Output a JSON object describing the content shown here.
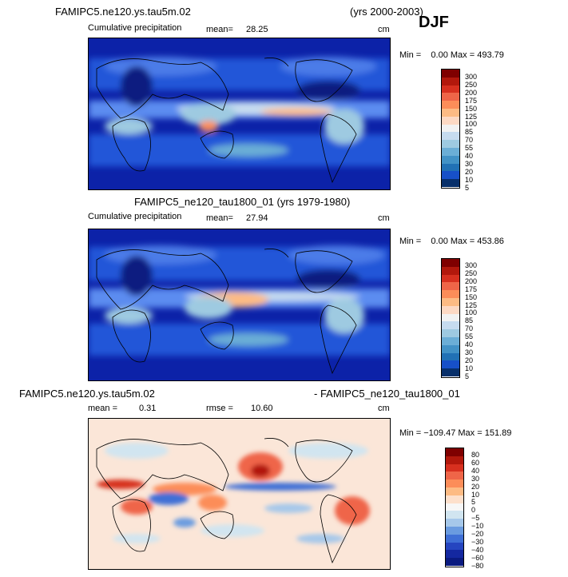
{
  "season_label": "DJF",
  "panel1": {
    "title": "FAMIPC5.ne120.ys.tau5m.02",
    "years": "(yrs 2000-2003)",
    "field": "Cumulative precipitation",
    "mean_label": "mean=",
    "mean_value": "28.25",
    "units": "cm",
    "min_max": "Min =    0.00 Max = 493.79",
    "colorbar_labels": [
      "300",
      "250",
      "200",
      "175",
      "150",
      "125",
      "100",
      "85",
      "70",
      "55",
      "40",
      "30",
      "20",
      "10",
      "5"
    ]
  },
  "panel2": {
    "title": "FAMIPC5_ne120_tau1800_01 (yrs 1979-1980)",
    "field": "Cumulative precipitation",
    "mean_label": "mean=",
    "mean_value": "27.94",
    "units": "cm",
    "min_max": "Min =    0.00 Max = 453.86",
    "colorbar_labels": [
      "300",
      "250",
      "200",
      "175",
      "150",
      "125",
      "100",
      "85",
      "70",
      "55",
      "40",
      "30",
      "20",
      "10",
      "5"
    ]
  },
  "panel3": {
    "title_left": "FAMIPC5.ne120.ys.tau5m.02",
    "title_right": "- FAMIPC5_ne120_tau1800_01",
    "mean_label": "mean =",
    "mean_value": "0.31",
    "rmse_label": "rmse =",
    "rmse_value": "10.60",
    "units": "cm",
    "min_max": "Min = −109.47 Max = 151.89",
    "colorbar_labels": [
      "80",
      "60",
      "40",
      "30",
      "20",
      "10",
      "5",
      "0",
      "−5",
      "−10",
      "−20",
      "−30",
      "−40",
      "−60",
      "−80"
    ]
  },
  "colors": {
    "precip_scale": [
      "#7f0000",
      "#b2180c",
      "#d7301f",
      "#ef6548",
      "#fc8d59",
      "#fdbb84",
      "#fdd9c4",
      "#f2f2f2",
      "#c6dbef",
      "#9ecae1",
      "#6baed6",
      "#4292c6",
      "#2171b5",
      "#1750c8",
      "#08306b"
    ],
    "diff_scale": [
      "#7f0000",
      "#b2180c",
      "#d7301f",
      "#ef6548",
      "#fc8d59",
      "#fdbb84",
      "#fde0cc",
      "#f7f7f7",
      "#d1e5f0",
      "#a6c8ea",
      "#6a9be0",
      "#3f6fd6",
      "#2545c0",
      "#1428a0",
      "#0a1a80"
    ],
    "ocean_dark": "#0c22a8",
    "ocean_mid": "#2456d8",
    "diff_bg": "#fbe6d8"
  }
}
